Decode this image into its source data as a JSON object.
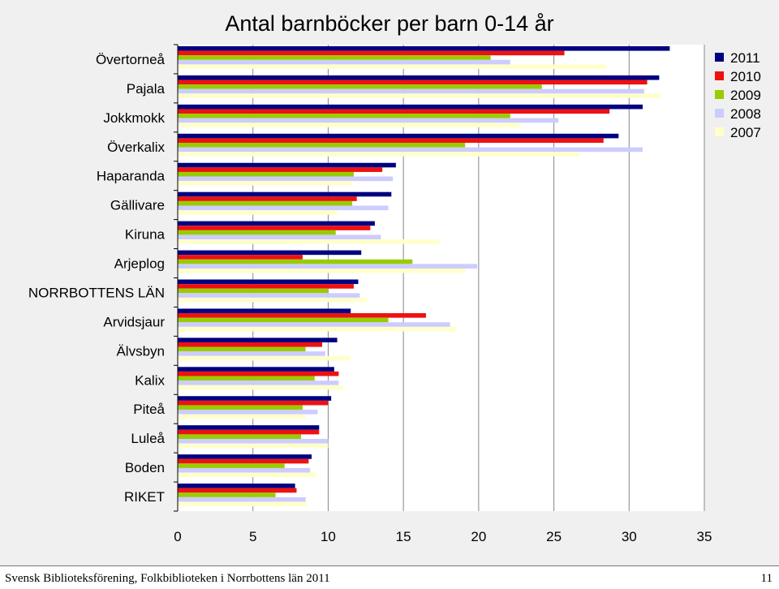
{
  "chart_data": {
    "type": "bar",
    "orientation": "horizontal",
    "title": "Antal barnböcker per barn 0-14 år",
    "categories": [
      "Övertorneå",
      "Pajala",
      "Jokkmokk",
      "Överkalix",
      "Haparanda",
      "Gällivare",
      "Kiruna",
      "Arjeplog",
      "NORRBOTTENS LÄN",
      "Arvidsjaur",
      "Älvsbyn",
      "Kalix",
      "Piteå",
      "Luleå",
      "Boden",
      "RIKET"
    ],
    "series": [
      {
        "name": "2011",
        "color": "#000080",
        "values": [
          32.7,
          32.0,
          30.9,
          29.3,
          14.5,
          14.2,
          13.1,
          12.2,
          12.0,
          11.5,
          10.6,
          10.4,
          10.2,
          9.4,
          8.9,
          7.8
        ]
      },
      {
        "name": "2010",
        "color": "#ee1111",
        "values": [
          25.7,
          31.2,
          28.7,
          28.3,
          13.6,
          11.9,
          12.8,
          8.3,
          11.7,
          16.5,
          9.6,
          10.7,
          10.0,
          9.4,
          8.7,
          7.9
        ]
      },
      {
        "name": "2009",
        "color": "#99cc00",
        "values": [
          20.8,
          24.2,
          22.1,
          19.1,
          11.7,
          11.6,
          10.5,
          15.6,
          10.0,
          14.0,
          8.5,
          9.1,
          8.3,
          8.2,
          7.1,
          6.5
        ]
      },
      {
        "name": "2008",
        "color": "#ccccff",
        "values": [
          22.1,
          31.0,
          25.3,
          30.9,
          14.3,
          14.0,
          13.5,
          19.9,
          12.1,
          18.1,
          9.8,
          10.7,
          9.3,
          10.0,
          8.8,
          8.5
        ]
      },
      {
        "name": "2007",
        "color": "#ffffcc",
        "values": [
          28.5,
          32.1,
          22.8,
          26.7,
          11.6,
          10.6,
          17.4,
          19.1,
          12.6,
          18.5,
          11.5,
          11.0,
          8.5,
          10.0,
          9.2,
          8.6
        ]
      }
    ],
    "xlim": [
      0,
      35
    ],
    "xticks": [
      "0",
      "5",
      "10",
      "15",
      "20",
      "25",
      "30",
      "35"
    ],
    "grid": true,
    "legend_position": "top-right"
  },
  "footer": {
    "text": "Svensk Biblioteksförening, Folkbiblioteken i Norrbottens län 2011",
    "page_number": "11"
  }
}
